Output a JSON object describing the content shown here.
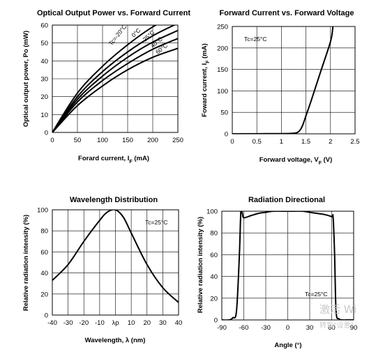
{
  "chart_data": [
    {
      "type": "line",
      "title": "Optical Output Power vs. Forward Current",
      "xlabel": "Forard current, I_F (mA)",
      "ylabel": "Optical output power, Po (mW)",
      "xlim": [
        0,
        250
      ],
      "ylim": [
        0,
        60
      ],
      "xticks": [
        0,
        50,
        100,
        150,
        200,
        250
      ],
      "yticks": [
        0,
        10,
        20,
        30,
        40,
        50,
        60
      ],
      "grid": true,
      "series": [
        {
          "name": "Tc=-20°C",
          "x": [
            0,
            50,
            100,
            150,
            200,
            250
          ],
          "y": [
            0,
            22,
            37,
            49,
            59,
            66
          ]
        },
        {
          "name": "0°C",
          "x": [
            0,
            50,
            100,
            150,
            200,
            250
          ],
          "y": [
            0,
            20,
            34,
            45,
            54,
            61
          ]
        },
        {
          "name": "25°C",
          "x": [
            0,
            50,
            100,
            150,
            200,
            250
          ],
          "y": [
            0,
            18.5,
            31.5,
            42,
            50.5,
            57
          ]
        },
        {
          "name": "40°C",
          "x": [
            0,
            50,
            100,
            150,
            200,
            250
          ],
          "y": [
            0,
            17,
            29,
            38.5,
            46.5,
            52.5
          ]
        },
        {
          "name": "60°C",
          "x": [
            0,
            50,
            100,
            150,
            200,
            250
          ],
          "y": [
            0,
            15,
            26,
            35,
            42,
            47
          ]
        }
      ]
    },
    {
      "type": "line",
      "title": "Forward Current vs. Forward Voltage",
      "xlabel": "Forward voltage, V_F (V)",
      "ylabel": "Foward current, I_F (mA)",
      "xlim": [
        0,
        2.5
      ],
      "ylim": [
        0,
        250
      ],
      "xticks": [
        "0",
        "0.5",
        "1",
        "1.5",
        "2",
        "2.5"
      ],
      "yticks": [
        0,
        50,
        100,
        150,
        200,
        250
      ],
      "grid": true,
      "annotation": "Tc=25°C",
      "series": [
        {
          "x": [
            0,
            1.0,
            1.2,
            1.3,
            1.35,
            1.4,
            1.45,
            1.5,
            1.6,
            1.8,
            2.0,
            2.05
          ],
          "y": [
            0,
            0.5,
            1,
            2,
            5,
            12,
            25,
            42,
            75,
            145,
            215,
            250
          ]
        }
      ]
    },
    {
      "type": "line",
      "title": "Wavelength Distribution",
      "xlabel": "Wavelength, λ (nm)",
      "ylabel": "Relative radiation intensity (%)",
      "xlim": [
        -40,
        40
      ],
      "ylim": [
        0,
        100
      ],
      "xticks": [
        "-40",
        "-30",
        "-20",
        "-10",
        "λp",
        "10",
        "20",
        "30",
        "40"
      ],
      "yticks": [
        0,
        20,
        40,
        60,
        80,
        100
      ],
      "grid": true,
      "annotation": "Tc=25°C",
      "series": [
        {
          "x": [
            -40,
            -30,
            -20,
            -10,
            -5,
            0,
            5,
            10,
            20,
            30,
            40
          ],
          "y": [
            33,
            48,
            70,
            90,
            98,
            100,
            93,
            78,
            48,
            26,
            12
          ]
        }
      ]
    },
    {
      "type": "line",
      "title": "Radiation Directional",
      "xlabel": "Angle (°)",
      "ylabel": "Relative radiation intensity (%)",
      "xlim": [
        -90,
        90
      ],
      "ylim": [
        0,
        100
      ],
      "xticks": [
        "-90",
        "-60",
        "-30",
        "0",
        "30",
        "60",
        "90"
      ],
      "yticks": [
        0,
        20,
        40,
        60,
        80,
        100
      ],
      "grid": true,
      "annotation": "Tc=25°C",
      "series": [
        {
          "x": [
            -90,
            -80,
            -75,
            -70,
            -66,
            -64,
            -62,
            -60,
            -50,
            -40,
            -30,
            -20,
            0,
            20,
            30,
            40,
            50,
            60,
            62,
            64,
            66,
            70,
            75,
            80,
            90
          ],
          "y": [
            0,
            0,
            2,
            8,
            60,
            100,
            98,
            94,
            96,
            98,
            99,
            100,
            100,
            100,
            99,
            98,
            97,
            95,
            94,
            60,
            8,
            1,
            0,
            0,
            0
          ]
        }
      ]
    }
  ],
  "watermark": {
    "line1": "激活 Wi",
    "line2": "转到\"设置\""
  }
}
